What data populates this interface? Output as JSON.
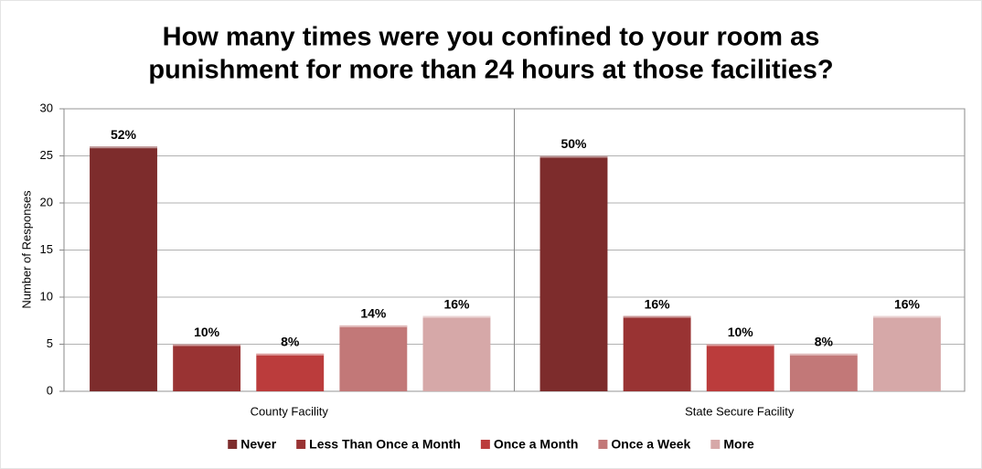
{
  "chart_data": {
    "type": "bar",
    "title": [
      "How many times were you confined to your room as",
      "punishment for more than 24 hours at those facilities?"
    ],
    "y_label": "Number of Responses",
    "categories": [
      "County Facility",
      "State Secure Facility"
    ],
    "series": [
      {
        "name": "Never",
        "color": "#7d2c2c",
        "values": [
          26,
          25
        ],
        "value_labels": [
          "52%",
          "50%"
        ]
      },
      {
        "name": "Less Than Once a Month",
        "color": "#993333",
        "values": [
          5,
          8
        ],
        "value_labels": [
          "10%",
          "16%"
        ]
      },
      {
        "name": "Once a Month",
        "color": "#bb3c3c",
        "values": [
          4,
          5
        ],
        "value_labels": [
          "8%",
          "10%"
        ]
      },
      {
        "name": "Once a Week",
        "color": "#c27878",
        "values": [
          7,
          4
        ],
        "value_labels": [
          "14%",
          "8%"
        ]
      },
      {
        "name": "More",
        "color": "#d6a8a8",
        "values": [
          8,
          8
        ],
        "value_labels": [
          "16%",
          "16%"
        ]
      }
    ],
    "ylim": [
      0,
      30
    ],
    "yticks": [
      0,
      5,
      10,
      15,
      20,
      25,
      30
    ],
    "grid": true,
    "legend": "bottom"
  }
}
